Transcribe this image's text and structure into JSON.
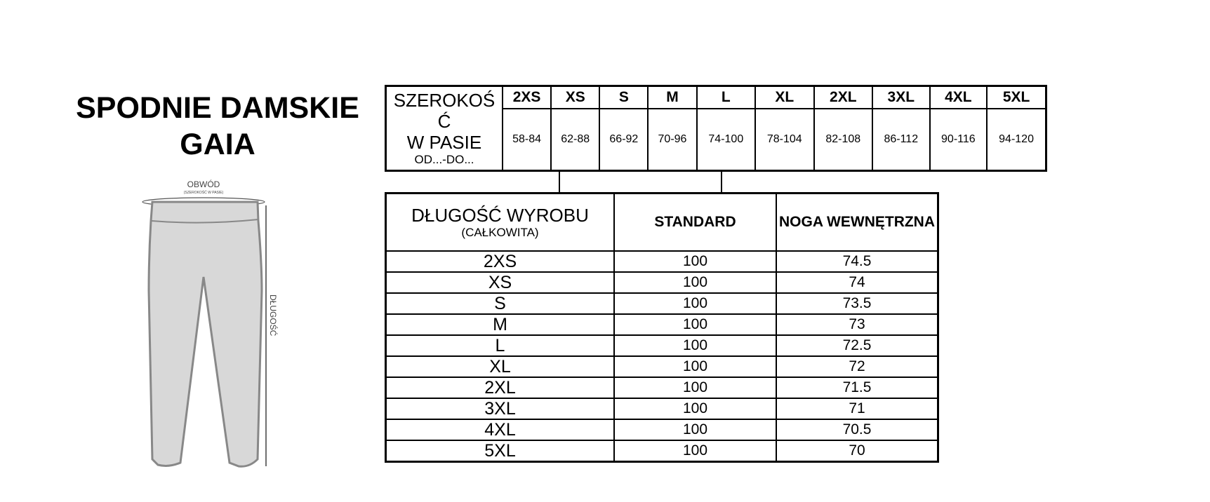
{
  "title": {
    "line1": "SPODNIE DAMSKIE",
    "line2": "GAIA"
  },
  "diagram": {
    "circumference_label": "OBWÓD",
    "circumference_sub": "(SZEROKOŚĆ W PASIE)",
    "length_label": "DŁUGOŚĆ"
  },
  "waist_table": {
    "label_line1": "SZEROKOŚ",
    "label_line2": "Ć",
    "label_line3": "W PASIE",
    "label_sub": "OD...-DO...",
    "sizes": [
      "2XS",
      "XS",
      "S",
      "M",
      "L",
      "XL",
      "2XL",
      "3XL",
      "4XL",
      "5XL"
    ],
    "values": [
      "58-84",
      "62-88",
      "66-92",
      "70-96",
      "74-100",
      "78-104",
      "82-108",
      "86-112",
      "90-116",
      "94-120"
    ]
  },
  "length_table": {
    "header": {
      "label": "DŁUGOŚĆ WYROBU",
      "sub": "(CAŁKOWITA)",
      "standard": "STANDARD",
      "inseam": "NOGA WEWNĘTRZNA"
    },
    "rows": [
      {
        "size": "2XS",
        "standard": "100",
        "inseam": "74.5"
      },
      {
        "size": "XS",
        "standard": "100",
        "inseam": "74"
      },
      {
        "size": "S",
        "standard": "100",
        "inseam": "73.5"
      },
      {
        "size": "M",
        "standard": "100",
        "inseam": "73"
      },
      {
        "size": "L",
        "standard": "100",
        "inseam": "72.5"
      },
      {
        "size": "XL",
        "standard": "100",
        "inseam": "72"
      },
      {
        "size": "2XL",
        "standard": "100",
        "inseam": "71.5"
      },
      {
        "size": "3XL",
        "standard": "100",
        "inseam": "71"
      },
      {
        "size": "4XL",
        "standard": "100",
        "inseam": "70.5"
      },
      {
        "size": "5XL",
        "standard": "100",
        "inseam": "70"
      }
    ]
  }
}
